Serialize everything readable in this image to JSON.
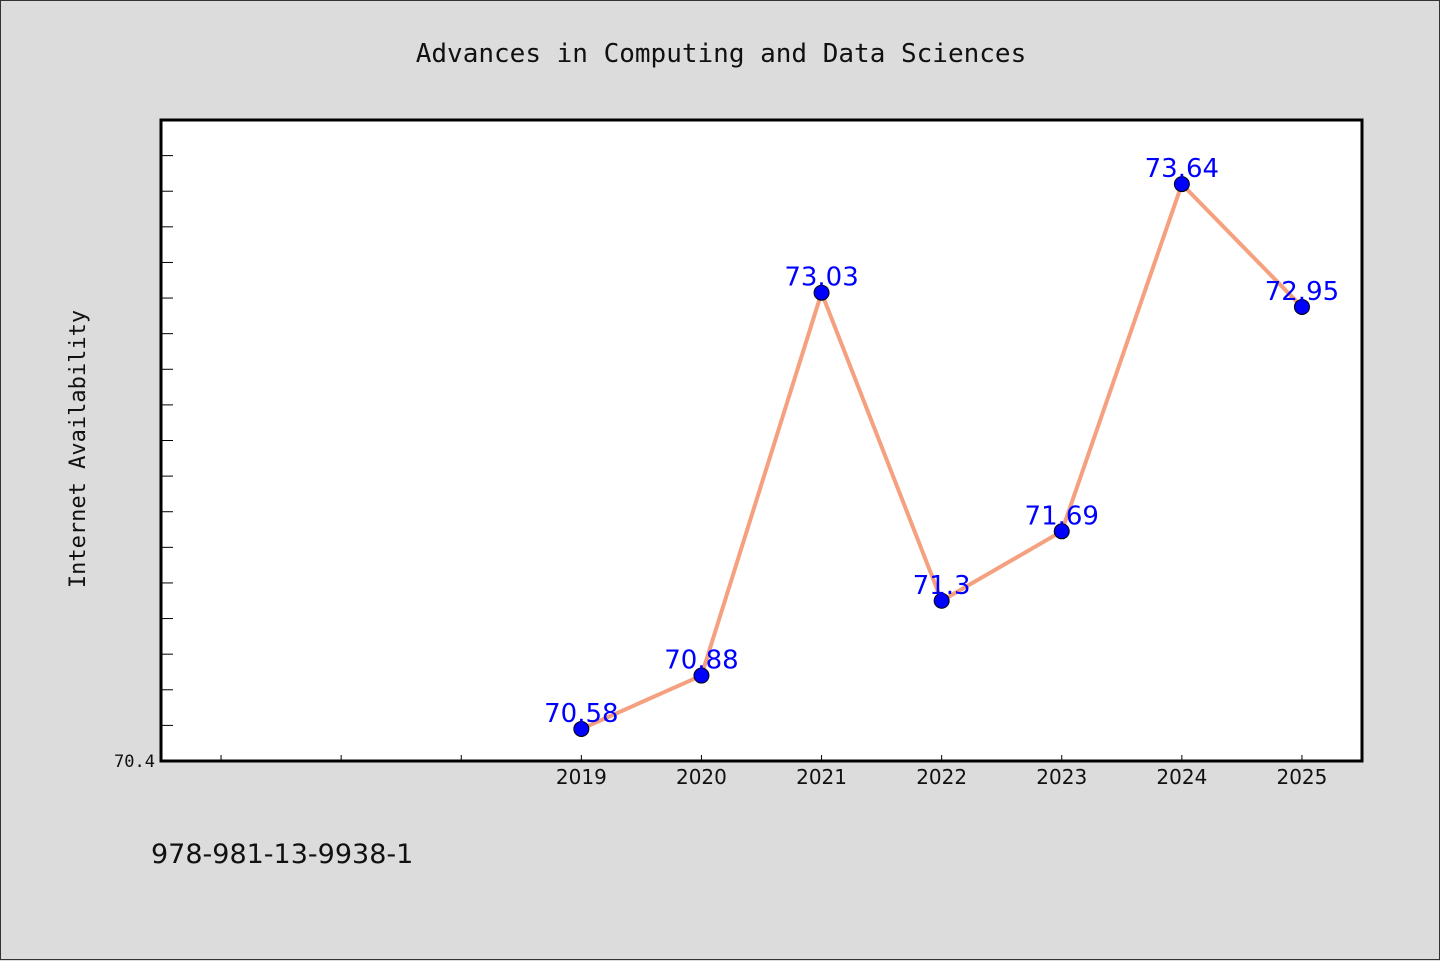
{
  "chart_data": {
    "type": "line",
    "title": "Advances in Computing and Data Sciences",
    "xlabel": "",
    "ylabel": "Internet Availability",
    "x": [
      "2019",
      "2020",
      "2021",
      "2022",
      "2023",
      "2024",
      "2025"
    ],
    "values": [
      70.58,
      70.88,
      73.03,
      71.3,
      71.69,
      73.64,
      72.95
    ],
    "data_labels": [
      "70.58",
      "70.88",
      "73.03",
      "71.3",
      "71.69",
      "73.64",
      "72.95"
    ],
    "y_tick_labels": [
      "70.4"
    ],
    "ylim": [
      70.4,
      74.0
    ],
    "x_slots": 10,
    "grid": false,
    "legend": "none",
    "colors": {
      "line": "#f5a07e",
      "marker": "#0000ff",
      "label": "#0000ff",
      "plot_bg": "#ffffff",
      "page_bg": "#dcdcdc"
    }
  },
  "footer": {
    "isbn": "978-981-13-9938-1"
  }
}
